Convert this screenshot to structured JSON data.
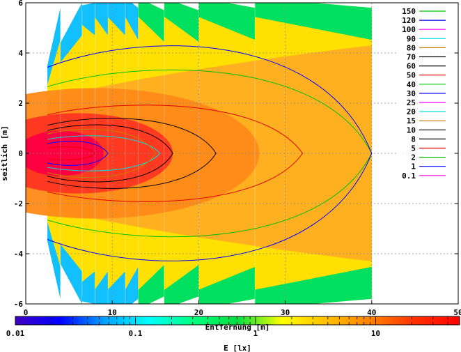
{
  "chart_data": {
    "type": "heatmap",
    "xlabel": "Entfernung [m]",
    "ylabel": "seitlich [m]",
    "xlim": [
      0,
      50
    ],
    "ylim": [
      -6,
      6
    ],
    "x_ticks": [
      "0",
      "10",
      "20",
      "30",
      "40",
      "50"
    ],
    "y_ticks": [
      "-6",
      "-4",
      "-2",
      "0",
      "2",
      "4",
      "6"
    ],
    "grid": true,
    "legend_position": "top-right",
    "contour_levels": [
      {
        "label": "150",
        "color": "#00c000"
      },
      {
        "label": "120",
        "color": "#0000ff"
      },
      {
        "label": "100",
        "color": "#ff00ff"
      },
      {
        "label": "90",
        "color": "#00e0e0"
      },
      {
        "label": "80",
        "color": "#c08000"
      },
      {
        "label": "70",
        "color": "#000000"
      },
      {
        "label": "60",
        "color": "#000000"
      },
      {
        "label": "50",
        "color": "#e00000"
      },
      {
        "label": "40",
        "color": "#00c000"
      },
      {
        "label": "30",
        "color": "#0000ff"
      },
      {
        "label": "25",
        "color": "#ff00ff"
      },
      {
        "label": "20",
        "color": "#00e0e0"
      },
      {
        "label": "15",
        "color": "#c08000"
      },
      {
        "label": "10",
        "color": "#000000"
      },
      {
        "label": "8",
        "color": "#000000"
      },
      {
        "label": "5",
        "color": "#e00000"
      },
      {
        "label": "2",
        "color": "#00c000"
      },
      {
        "label": "1",
        "color": "#0000ff"
      },
      {
        "label": "0.1",
        "color": "#ff00ff"
      }
    ],
    "colorbar": {
      "label": "E [lx]",
      "scale": "log",
      "range": [
        0.01,
        50
      ],
      "ticks": [
        "0.01",
        "0.1",
        "1",
        "10"
      ],
      "colors": [
        "#4000c0",
        "#0000ff",
        "#00a0ff",
        "#00ffff",
        "#00ff80",
        "#00e040",
        "#ffff00",
        "#ffc000",
        "#ff8000",
        "#ff3000",
        "#ff0000"
      ]
    },
    "illuminated_segments": [
      {
        "x_start": 2.5,
        "x_end": 4,
        "half_width_far": 5.8
      },
      {
        "x_start": 4,
        "x_end": 6.5,
        "half_width_far": 6.0
      },
      {
        "x_start": 6.5,
        "x_end": 8,
        "half_width_far": 6.0
      },
      {
        "x_start": 8,
        "x_end": 9.5,
        "half_width_far": 6.0
      },
      {
        "x_start": 9.5,
        "x_end": 11.5,
        "half_width_far": 6.0
      },
      {
        "x_start": 11.5,
        "x_end": 13,
        "half_width_far": 5.8
      },
      {
        "x_start": 13,
        "x_end": 16,
        "half_width_far": 5.7
      },
      {
        "x_start": 16,
        "x_end": 20,
        "half_width_far": 5.7
      },
      {
        "x_start": 20,
        "x_end": 26.5,
        "half_width_far": 5.8
      },
      {
        "x_start": 26.5,
        "x_end": 40,
        "half_width_far": 5.8
      }
    ],
    "iso_contours": [
      {
        "level": "50",
        "color": "#e00000",
        "reach_x": 8.0,
        "half_width": 0.3
      },
      {
        "level": "30",
        "color": "#0000ff",
        "reach_x": 9.5,
        "half_width": 0.55
      },
      {
        "level": "20",
        "color": "#00e0e0",
        "reach_x": 15.5,
        "half_width": 0.8
      },
      {
        "level": "15",
        "color": "#c08000",
        "reach_x": 15.0,
        "half_width": 1.1
      },
      {
        "level": "10",
        "color": "#000000",
        "reach_x": 17.0,
        "half_width": 1.3
      },
      {
        "level": "8",
        "color": "#000000",
        "reach_x": 22.0,
        "half_width": 1.6
      },
      {
        "level": "5",
        "color": "#e00000",
        "reach_x": 32.0,
        "half_width": 2.2
      },
      {
        "level": "2",
        "color": "#00c000",
        "reach_x": 40.0,
        "half_width": 3.8
      },
      {
        "level": "1",
        "color": "#0000ff",
        "reach_x": 40.0,
        "half_width": 4.9
      }
    ]
  }
}
